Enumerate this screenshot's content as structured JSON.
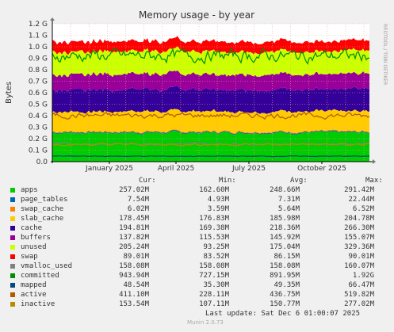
{
  "chart_data": {
    "type": "area",
    "title": "Memory usage - by year",
    "ylabel": "Bytes",
    "side_label": "RRDTOOL / TOBI OETIKER",
    "y_ticks": [
      "0.0",
      "0.1 G",
      "0.2 G",
      "0.3 G",
      "0.4 G",
      "0.5 G",
      "0.6 G",
      "0.7 G",
      "0.8 G",
      "0.9 G",
      "1.0 G",
      "1.1 G",
      "1.2 G"
    ],
    "y_unit_max_g": 1.2,
    "x_ticks": [
      "January 2025",
      "April 2025",
      "July 2025",
      "October 2025"
    ],
    "grid": true,
    "series": [
      {
        "name": "apps",
        "color": "#00cc00",
        "cur": "257.02M",
        "min": "162.60M",
        "avg": "248.66M",
        "max": "291.42M",
        "value_m": 257.02
      },
      {
        "name": "page_tables",
        "color": "#0066b3",
        "cur": "7.54M",
        "min": "4.93M",
        "avg": "7.31M",
        "max": "22.44M",
        "value_m": 7.54
      },
      {
        "name": "swap_cache",
        "color": "#ff8000",
        "cur": "6.02M",
        "min": "3.59M",
        "avg": "5.64M",
        "max": "6.52M",
        "value_m": 6.02
      },
      {
        "name": "slab_cache",
        "color": "#ffcc00",
        "cur": "178.45M",
        "min": "176.83M",
        "avg": "185.98M",
        "max": "204.78M",
        "value_m": 178.45
      },
      {
        "name": "cache",
        "color": "#330099",
        "cur": "194.81M",
        "min": "169.38M",
        "avg": "218.36M",
        "max": "266.30M",
        "value_m": 194.81
      },
      {
        "name": "buffers",
        "color": "#990099",
        "cur": "137.82M",
        "min": "115.53M",
        "avg": "145.92M",
        "max": "155.07M",
        "value_m": 137.82
      },
      {
        "name": "unused",
        "color": "#ccff00",
        "cur": "205.24M",
        "min": "93.25M",
        "avg": "175.04M",
        "max": "329.36M",
        "value_m": 205.24
      },
      {
        "name": "swap",
        "color": "#ff0000",
        "cur": "89.01M",
        "min": "83.52M",
        "avg": "86.15M",
        "max": "90.01M",
        "value_m": 89.01
      },
      {
        "name": "vmalloc_used",
        "color": "#808080",
        "cur": "158.08M",
        "min": "158.08M",
        "avg": "158.08M",
        "max": "160.07M",
        "value_m": 158.08
      },
      {
        "name": "committed",
        "color": "#008f00",
        "cur": "943.94M",
        "min": "727.15M",
        "avg": "891.95M",
        "max": "1.92G",
        "value_m": 943.94
      },
      {
        "name": "mapped",
        "color": "#00487d",
        "cur": "48.54M",
        "min": "35.30M",
        "avg": "49.35M",
        "max": "66.47M",
        "value_m": 48.54
      },
      {
        "name": "active",
        "color": "#b35a00",
        "cur": "411.10M",
        "min": "228.11M",
        "avg": "436.75M",
        "max": "519.82M",
        "value_m": 411.1
      },
      {
        "name": "inactive",
        "color": "#b38f00",
        "cur": "153.54M",
        "min": "107.11M",
        "avg": "150.77M",
        "max": "277.02M",
        "value_m": 153.54
      }
    ]
  },
  "legend_headers": {
    "cur": "Cur:",
    "min": "Min:",
    "avg": "Avg:",
    "max": "Max:"
  },
  "footer": {
    "last_update": "Last update: Sat Dec  6 01:00:07 2025",
    "generator": "Munin 2.0.73"
  }
}
